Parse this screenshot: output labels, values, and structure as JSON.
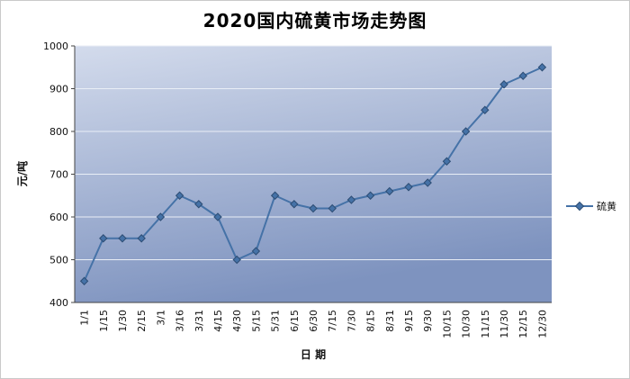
{
  "chart_data": {
    "type": "line",
    "title": "2020国内硫黄市场走势图",
    "xlabel": "日 期",
    "ylabel": "元/吨",
    "ylim": [
      400,
      1000
    ],
    "ytick_interval": 100,
    "grid": true,
    "legend_position": "right",
    "categories": [
      "1/1",
      "1/15",
      "1/30",
      "2/15",
      "3/1",
      "3/16",
      "3/31",
      "4/15",
      "4/30",
      "5/15",
      "5/31",
      "6/15",
      "6/30",
      "7/15",
      "7/30",
      "8/15",
      "8/31",
      "9/15",
      "9/30",
      "10/15",
      "10/30",
      "11/15",
      "11/30",
      "12/15",
      "12/30"
    ],
    "series": [
      {
        "name": "硫黄",
        "color": "#4572a7",
        "values": [
          450,
          550,
          550,
          550,
          600,
          650,
          630,
          600,
          500,
          520,
          650,
          630,
          620,
          620,
          640,
          650,
          660,
          670,
          680,
          730,
          800,
          850,
          910,
          930,
          950
        ]
      }
    ]
  },
  "colors": {
    "line": "#4572a7",
    "marker_border": "#2d4d74",
    "plot_top": "#d3dbec",
    "plot_bottom": "#7e93bf",
    "grid": "#e9eef6",
    "axis": "#444444"
  }
}
